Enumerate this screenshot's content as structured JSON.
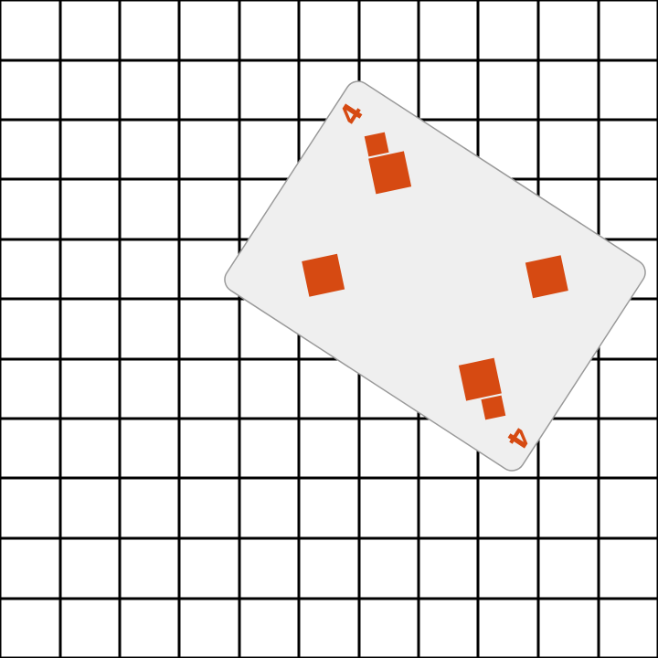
{
  "scene": {
    "board": {
      "line_color": "#000000",
      "background": "#ffffff"
    },
    "card": {
      "rank": "4",
      "suit": "diamonds",
      "suit_icon": "diamond-icon",
      "pip_count": 4,
      "face_color": "#efefef",
      "suit_color": "#d64a12"
    }
  }
}
